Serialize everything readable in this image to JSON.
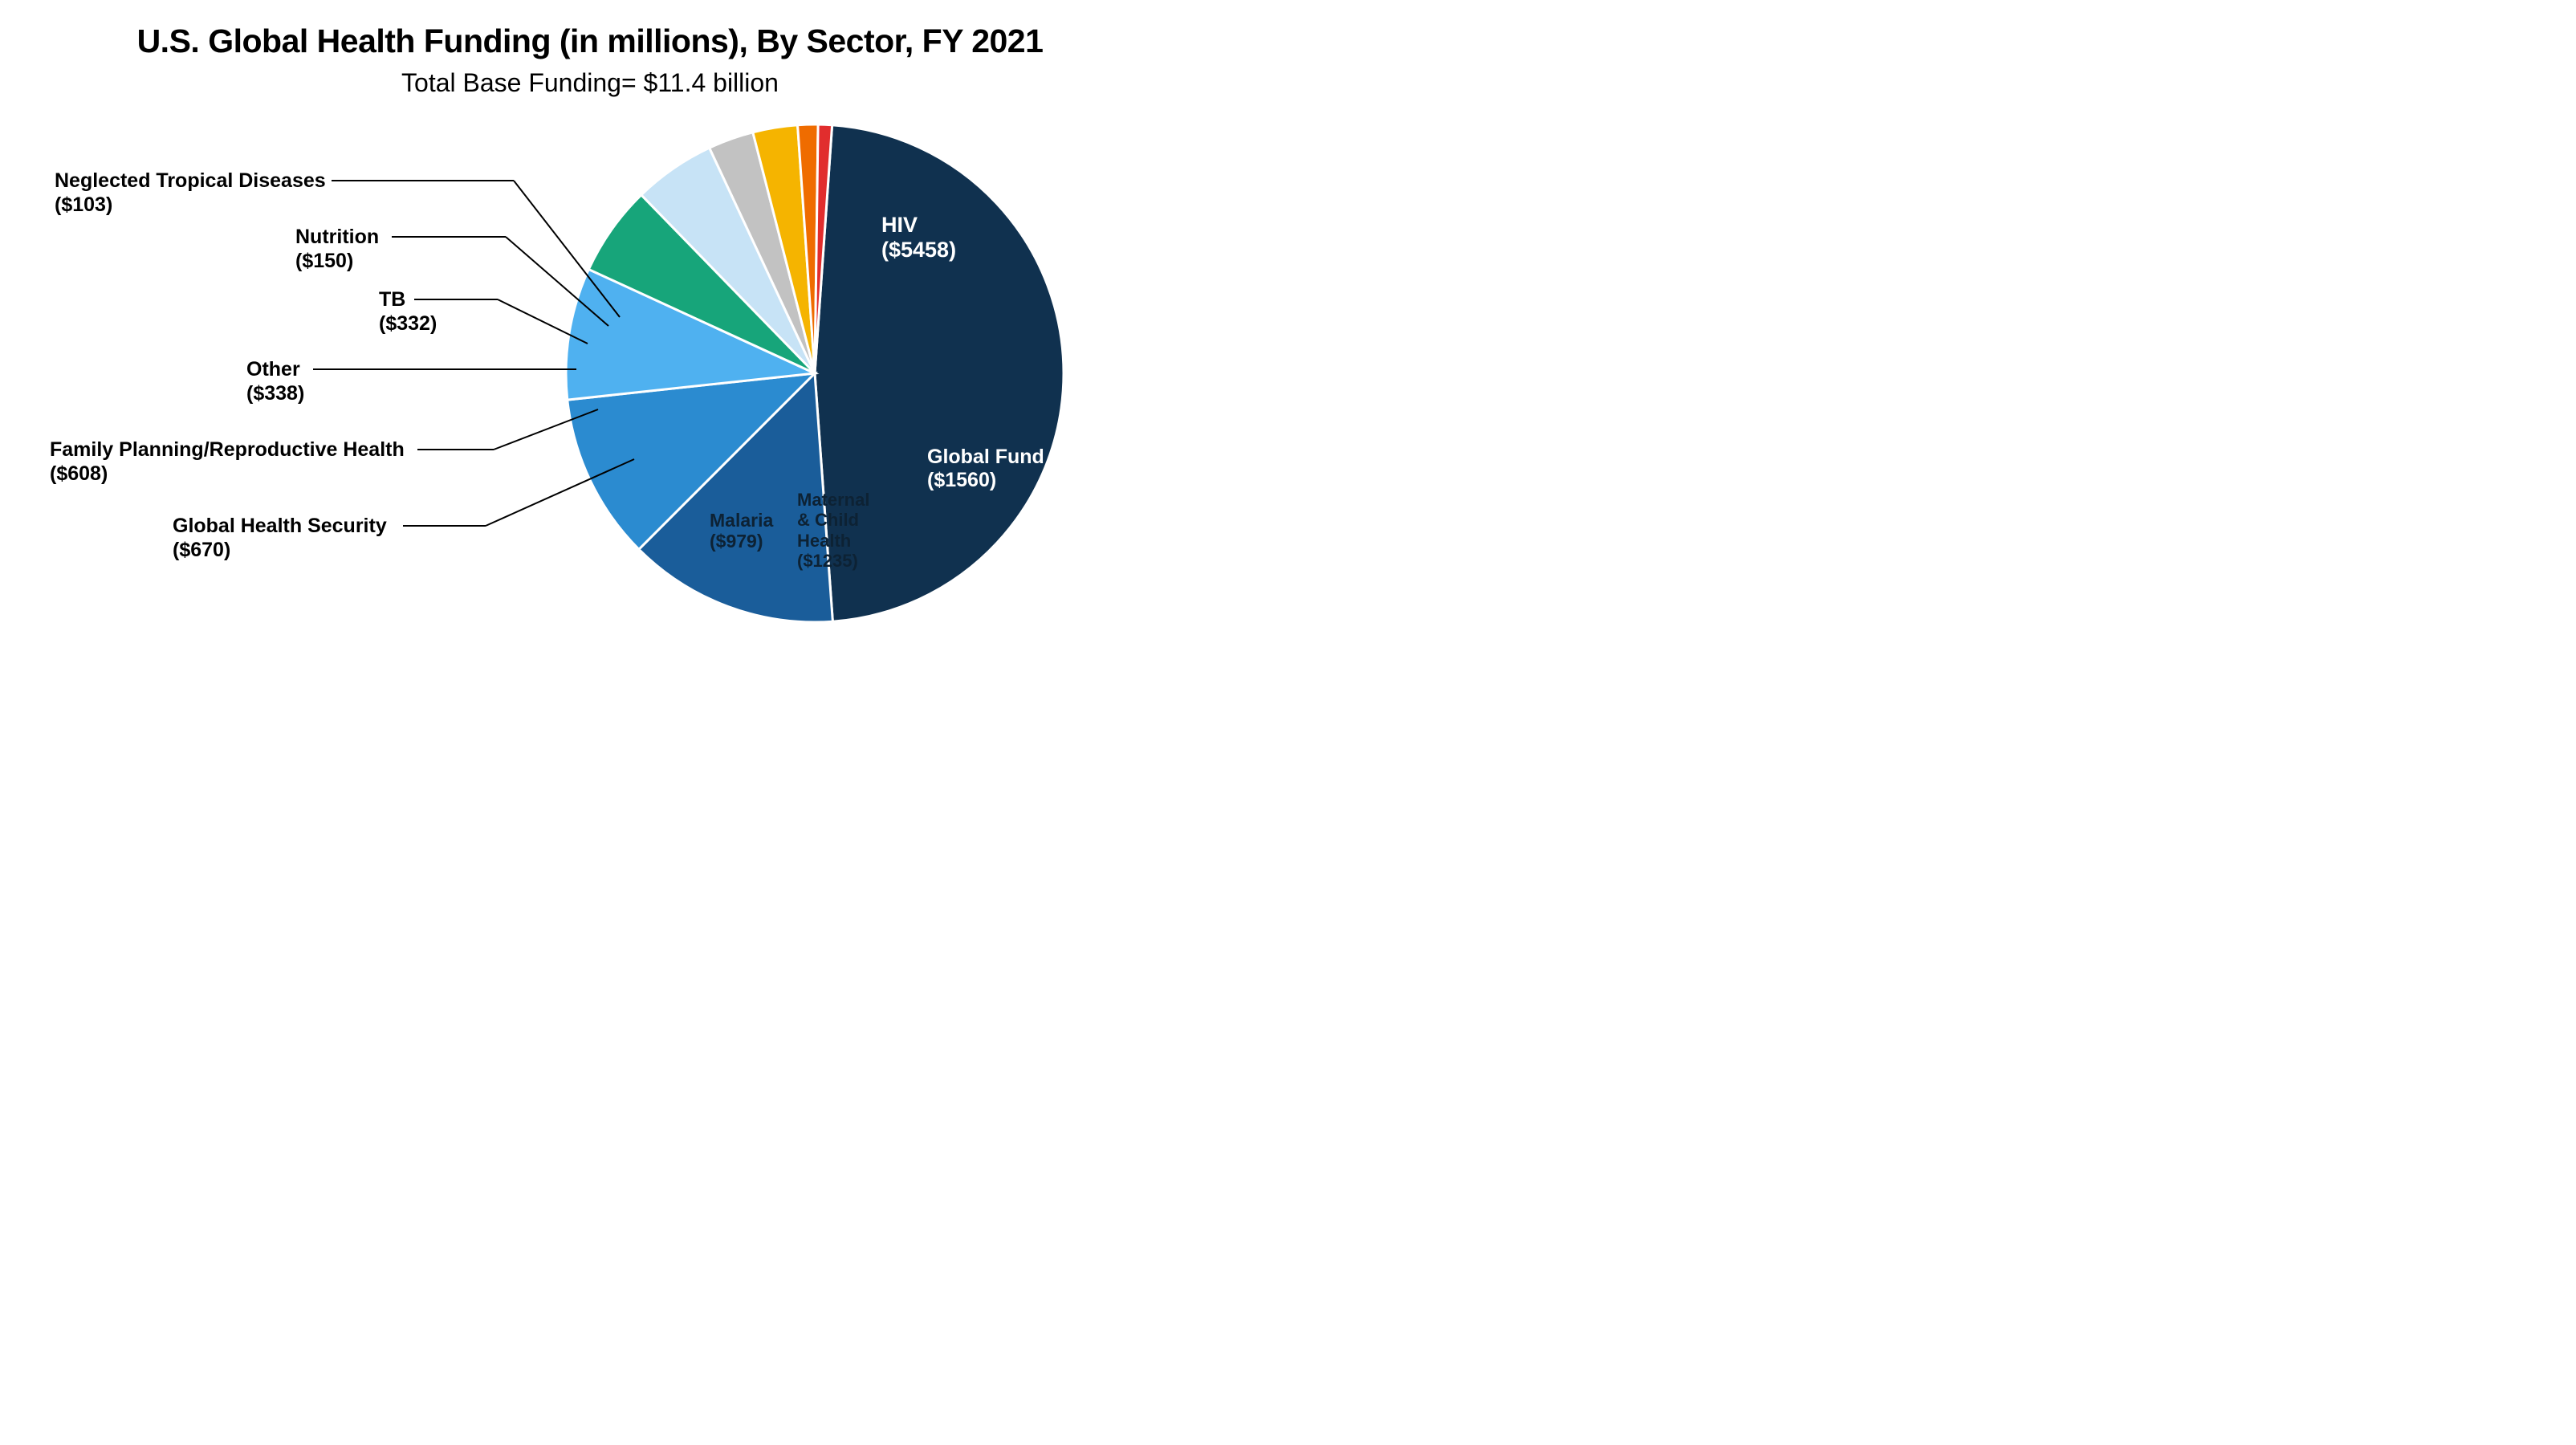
{
  "title": "U.S. Global Health Funding (in millions), By Sector, FY 2021",
  "subtitle": "Total Base Funding= $11.4 billion",
  "chart": {
    "type": "pie",
    "background_color": "#ffffff",
    "stroke_color": "#ffffff",
    "stroke_width": 3,
    "title_fontsize": 41,
    "subtitle_fontsize": 32,
    "label_fontsize_internal": 25,
    "label_fontsize_external": 25,
    "slices": [
      {
        "label": "HIV",
        "value_label": "($5458)",
        "value": 5458,
        "color": "#10314f"
      },
      {
        "label": "Global Fund",
        "value_label": "($1560)",
        "value": 1560,
        "color": "#1a5d9a"
      },
      {
        "label": "Maternal & Child Health",
        "value_label": "($1235)",
        "value": 1235,
        "color": "#2b8bd0"
      },
      {
        "label": "Malaria",
        "value_label": "($979)",
        "value": 979,
        "color": "#4fb1f0"
      },
      {
        "label": "Global Health Security",
        "value_label": "($670)",
        "value": 670,
        "color": "#17a57a"
      },
      {
        "label": "Family Planning/Reproductive Health",
        "value_label": "($608)",
        "value": 608,
        "color": "#c7e3f6"
      },
      {
        "label": "Other",
        "value_label": "($338)",
        "value": 338,
        "color": "#c2c2c2"
      },
      {
        "label": "TB",
        "value_label": "($332)",
        "value": 332,
        "color": "#f5b400"
      },
      {
        "label": "Nutrition",
        "value_label": "($150)",
        "value": 150,
        "color": "#ef6c00"
      },
      {
        "label": "Neglected Tropical Diseases",
        "value_label": "($103)",
        "value": 103,
        "color": "#e12d2d"
      }
    ],
    "internal_labels": {
      "hiv_line1": "HIV",
      "hiv_line2": "($5458)",
      "gf_line1": "Global Fund",
      "gf_line2": "($1560)",
      "mch_line1": "Maternal",
      "mch_line2": "& Child",
      "mch_line3": "Health",
      "mch_line4": "($1235)",
      "mal_line1": "Malaria",
      "mal_line2": "($979)"
    },
    "external_labels": {
      "ghs_line1": "Global Health Security",
      "ghs_line2": "($670)",
      "fprh_line1": "Family Planning/Reproductive Health",
      "fprh_line2": "($608)",
      "other_line1": "Other",
      "other_line2": "($338)",
      "tb_line1": "TB",
      "tb_line2": "($332)",
      "nut_line1": "Nutrition",
      "nut_line2": "($150)",
      "ntd_line1": "Neglected Tropical Diseases",
      "ntd_line2": "($103)"
    }
  }
}
